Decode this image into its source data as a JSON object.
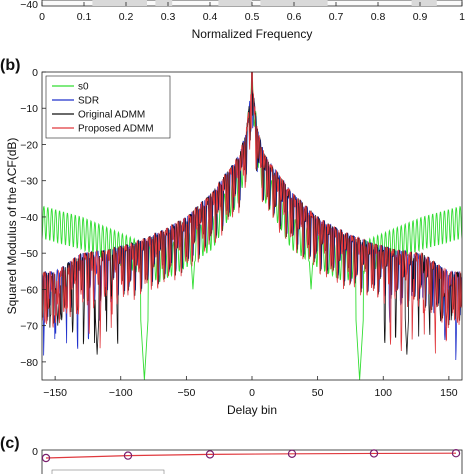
{
  "panels": {
    "a": {
      "xlabel": "Normalized Frequency",
      "visible_ytick": "−40",
      "xticks": [
        "0",
        "0.1",
        "0.2",
        "0.3",
        "0.4",
        "0.5",
        "0.6",
        "0.7",
        "0.8",
        "0.9",
        "1"
      ]
    },
    "b": {
      "label": "(b)"
    },
    "c": {
      "label": "(c)",
      "ytick": "0"
    }
  },
  "chart_data": [
    {
      "type": "bar",
      "panel": "a",
      "note": "top panel, cropped; only the x-axis row is visible",
      "xlabel": "Normalized Frequency",
      "xlim": [
        0,
        1
      ],
      "xticks": [
        0,
        0.1,
        0.2,
        0.3,
        0.4,
        0.5,
        0.6,
        0.7,
        0.8,
        0.9,
        1
      ],
      "stopband_edges": [
        0.12,
        0.25,
        0.27,
        0.31,
        0.42,
        0.5,
        0.52,
        0.68,
        0.88,
        0.94
      ],
      "ylim_visible_min": -40
    },
    {
      "type": "line",
      "panel": "b",
      "xlabel": "Delay bin",
      "ylabel": "Squared Modulus of the ACF(dB)",
      "xlim": [
        -160,
        160
      ],
      "ylim": [
        -85,
        0
      ],
      "xticks": [
        -150,
        -100,
        -50,
        0,
        50,
        100,
        150
      ],
      "yticks": [
        0,
        -10,
        -20,
        -30,
        -40,
        -50,
        -60,
        -70,
        -80
      ],
      "grid": false,
      "legend_position": "top-left",
      "series": [
        {
          "name": "s0",
          "color": "#33dd33",
          "envelope": {
            "x": [
              -160,
              -150,
              -130,
              -110,
              -90,
              -70,
              -50,
              -30,
              -20,
              -10,
              -5,
              0,
              5,
              10,
              20,
              30,
              50,
              70,
              90,
              110,
              130,
              150,
              160
            ],
            "y": [
              -37,
              -38,
              -40,
              -43,
              -46,
              -49,
              -45,
              -40,
              -33,
              -27,
              -19,
              0,
              -19,
              -27,
              -33,
              -40,
              -45,
              -49,
              -46,
              -43,
              -40,
              -38,
              -37
            ]
          },
          "notches": {
            "x": [
              -82,
              -45,
              45,
              82
            ],
            "y": [
              -85,
              -60,
              -60,
              -85
            ]
          }
        },
        {
          "name": "SDR",
          "color": "#2233cc",
          "envelope": {
            "x": [
              -160,
              -150,
              -130,
              -110,
              -90,
              -70,
              -50,
              -30,
              -20,
              -10,
              -5,
              0,
              5,
              10,
              20,
              30,
              50,
              70,
              90,
              110,
              130,
              150,
              160
            ],
            "y": [
              -52,
              -52,
              -47,
              -46,
              -44,
              -41,
              -37,
              -30,
              -25,
              -20,
              -14,
              0,
              -14,
              -20,
              -25,
              -30,
              -37,
              -41,
              -44,
              -46,
              -47,
              -52,
              -52
            ]
          }
        },
        {
          "name": "Original ADMM",
          "color": "#111111",
          "envelope": {
            "x": [
              -160,
              -150,
              -130,
              -110,
              -90,
              -70,
              -50,
              -30,
              -20,
              -10,
              -5,
              0,
              5,
              10,
              20,
              30,
              50,
              70,
              90,
              110,
              130,
              150,
              160
            ],
            "y": [
              -52,
              -52,
              -47,
              -46,
              -44,
              -41,
              -37,
              -30,
              -25,
              -20,
              -14,
              0,
              -14,
              -20,
              -25,
              -30,
              -37,
              -41,
              -44,
              -46,
              -47,
              -52,
              -52
            ]
          },
          "notches": {
            "x": [
              -118,
              -148,
              118,
              148
            ],
            "y": [
              -78,
              -70,
              -78,
              -70
            ]
          }
        },
        {
          "name": "Proposed ADMM",
          "color": "#e0393e",
          "envelope": {
            "x": [
              -160,
              -150,
              -130,
              -110,
              -90,
              -70,
              -50,
              -30,
              -20,
              -10,
              -5,
              0,
              5,
              10,
              20,
              30,
              50,
              70,
              90,
              110,
              130,
              150,
              160
            ],
            "y": [
              -52,
              -52,
              -47,
              -46,
              -44,
              -41,
              -37,
              -30,
              -25,
              -20,
              -14,
              0,
              -14,
              -20,
              -25,
              -30,
              -37,
              -41,
              -44,
              -46,
              -47,
              -52,
              -52
            ]
          }
        }
      ]
    },
    {
      "type": "line",
      "panel": "c",
      "note": "bottom panel, cropped; only the top row is visible",
      "yticks": [
        0
      ],
      "series": [
        {
          "name": "",
          "color": "#e0393e",
          "marker": "o",
          "markercolor": "#7a1f6e",
          "x": [
            1,
            2,
            3,
            4,
            5,
            6
          ],
          "y": [
            -5,
            -3,
            -2,
            -1.5,
            -1.2,
            -1
          ]
        }
      ]
    }
  ]
}
